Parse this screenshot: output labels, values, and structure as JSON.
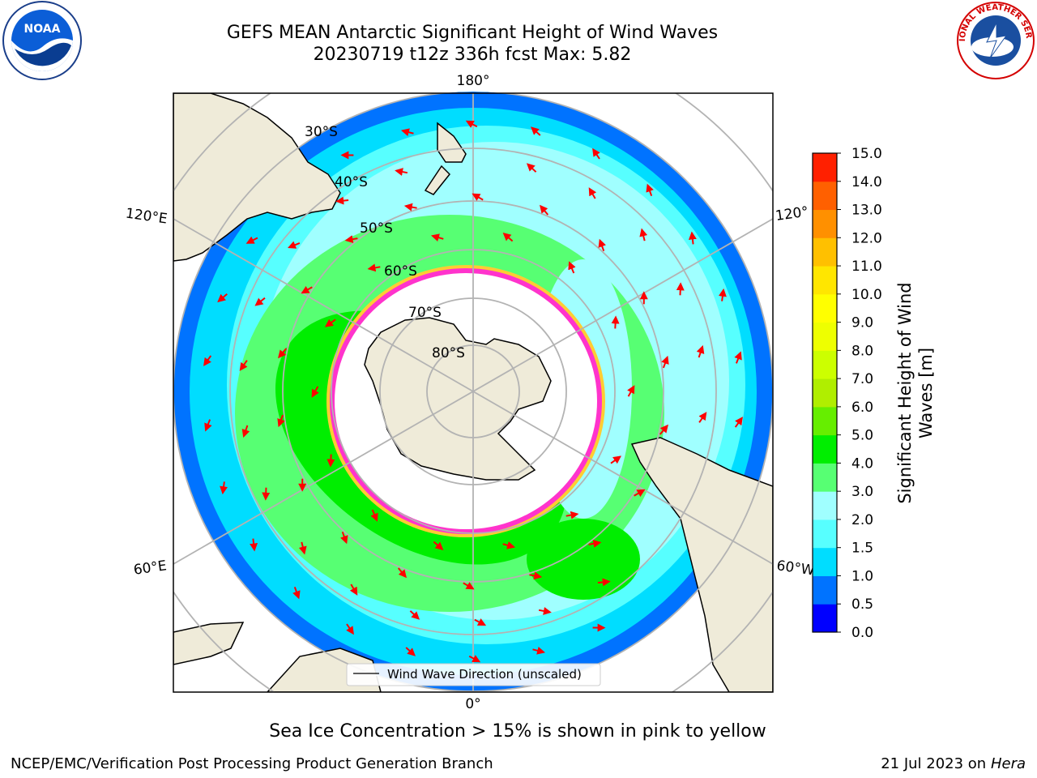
{
  "header": {
    "title_line1": "GEFS MEAN Antarctic Significant Height of Wind Waves",
    "title_line2": "20230719 t12z 336h fcst   Max: 5.82"
  },
  "logos": {
    "left": {
      "name": "noaa-logo",
      "text": "NOAA"
    },
    "right": {
      "name": "national-weather-service-logo",
      "text": "NATIONAL WEATHER SERVICE"
    }
  },
  "map": {
    "projection": "south-polar-stereographic",
    "lon_labels": [
      "180°",
      "120°E",
      "120°",
      "60°E",
      "60°W",
      "0°"
    ],
    "lat_labels": [
      "30°S",
      "40°S",
      "50°S",
      "60°S",
      "70°S",
      "80°S"
    ],
    "colors": {
      "land": "#efebd9",
      "ice": "#ffffff",
      "sea_ice_edge": "#ff33cc",
      "arrow": "#ff0000",
      "grid": "#b3b3b3"
    },
    "legend": {
      "label": "Wind Wave Direction (unscaled)",
      "placement": "lower-center"
    }
  },
  "colorbar": {
    "label_line1": "Significant Height of Wind",
    "label_line2": "Waves [m]",
    "ticks": [
      "0.0",
      "0.5",
      "1.0",
      "1.5",
      "2.0",
      "3.0",
      "4.0",
      "5.0",
      "6.0",
      "7.0",
      "8.0",
      "9.0",
      "10.0",
      "11.0",
      "12.0",
      "13.0",
      "14.0",
      "15.0"
    ],
    "colors": [
      "#0000ff",
      "#0073ff",
      "#00ddff",
      "#57ffff",
      "#a0ffff",
      "#57ff73",
      "#00ee00",
      "#66ee00",
      "#b0ee00",
      "#ccff00",
      "#eeff00",
      "#ffff00",
      "#ffe600",
      "#ffc000",
      "#ff9000",
      "#ff6000",
      "#ff2000"
    ]
  },
  "notes": {
    "sea_ice": "Sea Ice Concentration > 15% is shown in pink to yellow",
    "producer": "NCEP/EMC/Verification Post Processing Product Generation Branch",
    "run_date": "21 Jul 2023 on ",
    "machine": "Hera"
  }
}
